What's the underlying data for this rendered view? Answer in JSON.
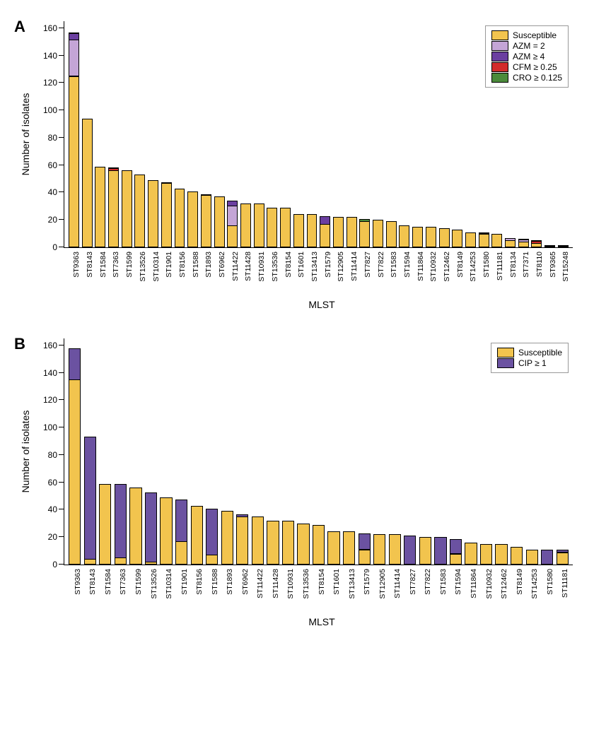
{
  "colors": {
    "Susceptible": "#f2c44e",
    "AZM_eq_2": "#c4a5d6",
    "AZM_ge_4": "#6b3fa0",
    "CFM_ge_025": "#d22b2b",
    "CRO_ge_0125": "#4b8b3b",
    "CIP_ge_1": "#6b52a1"
  },
  "panelA": {
    "panel_label": "A",
    "ylabel": "Number of isolates",
    "xlabel": "MLST",
    "ymax": 165,
    "ytick_step": 20,
    "title_fontsize": 22,
    "label_fontsize": 14,
    "tick_fontsize": 12,
    "legend": [
      {
        "key": "Susceptible",
        "label": "Susceptible"
      },
      {
        "key": "AZM_eq_2",
        "label": "AZM = 2"
      },
      {
        "key": "AZM_ge_4",
        "label": "AZM ≥ 4"
      },
      {
        "key": "CFM_ge_025",
        "label": "CFM ≥ 0.25"
      },
      {
        "key": "CRO_ge_0125",
        "label": "CRO ≥ 0.125"
      }
    ],
    "bars": [
      {
        "cat": "ST9363",
        "segs": [
          {
            "c": "Susceptible",
            "v": 125
          },
          {
            "c": "AZM_eq_2",
            "v": 27
          },
          {
            "c": "AZM_ge_4",
            "v": 5
          },
          {
            "c": "CRO_ge_0125",
            "v": 1
          }
        ]
      },
      {
        "cat": "ST8143",
        "segs": [
          {
            "c": "Susceptible",
            "v": 94
          }
        ]
      },
      {
        "cat": "ST1584",
        "segs": [
          {
            "c": "Susceptible",
            "v": 59
          }
        ]
      },
      {
        "cat": "ST7363",
        "segs": [
          {
            "c": "Susceptible",
            "v": 56
          },
          {
            "c": "CFM_ge_025",
            "v": 2
          },
          {
            "c": "AZM_ge_4",
            "v": 1
          }
        ]
      },
      {
        "cat": "ST1599",
        "segs": [
          {
            "c": "Susceptible",
            "v": 56
          }
        ]
      },
      {
        "cat": "ST13526",
        "segs": [
          {
            "c": "Susceptible",
            "v": 53
          }
        ]
      },
      {
        "cat": "ST10314",
        "segs": [
          {
            "c": "Susceptible",
            "v": 49
          }
        ]
      },
      {
        "cat": "ST1901",
        "segs": [
          {
            "c": "Susceptible",
            "v": 47
          },
          {
            "c": "AZM_ge_4",
            "v": 1
          }
        ]
      },
      {
        "cat": "ST8156",
        "segs": [
          {
            "c": "Susceptible",
            "v": 43
          }
        ]
      },
      {
        "cat": "ST1588",
        "segs": [
          {
            "c": "Susceptible",
            "v": 41
          }
        ]
      },
      {
        "cat": "ST1893",
        "segs": [
          {
            "c": "Susceptible",
            "v": 38
          },
          {
            "c": "CFM_ge_025",
            "v": 1
          }
        ]
      },
      {
        "cat": "ST6962",
        "segs": [
          {
            "c": "Susceptible",
            "v": 37
          }
        ]
      },
      {
        "cat": "ST11422",
        "segs": [
          {
            "c": "Susceptible",
            "v": 16
          },
          {
            "c": "AZM_eq_2",
            "v": 15
          },
          {
            "c": "AZM_ge_4",
            "v": 4
          }
        ]
      },
      {
        "cat": "ST11428",
        "segs": [
          {
            "c": "Susceptible",
            "v": 32
          }
        ]
      },
      {
        "cat": "ST10931",
        "segs": [
          {
            "c": "Susceptible",
            "v": 32
          }
        ]
      },
      {
        "cat": "ST13536",
        "segs": [
          {
            "c": "Susceptible",
            "v": 29
          }
        ]
      },
      {
        "cat": "ST8154",
        "segs": [
          {
            "c": "Susceptible",
            "v": 29
          }
        ]
      },
      {
        "cat": "ST1601",
        "segs": [
          {
            "c": "Susceptible",
            "v": 24
          }
        ]
      },
      {
        "cat": "ST13413",
        "segs": [
          {
            "c": "Susceptible",
            "v": 24
          }
        ]
      },
      {
        "cat": "ST1579",
        "segs": [
          {
            "c": "Susceptible",
            "v": 17
          },
          {
            "c": "AZM_ge_4",
            "v": 6
          }
        ]
      },
      {
        "cat": "ST12905",
        "segs": [
          {
            "c": "Susceptible",
            "v": 22
          }
        ]
      },
      {
        "cat": "ST11414",
        "segs": [
          {
            "c": "Susceptible",
            "v": 22
          }
        ]
      },
      {
        "cat": "ST7827",
        "segs": [
          {
            "c": "Susceptible",
            "v": 19
          },
          {
            "c": "CRO_ge_0125",
            "v": 2
          }
        ]
      },
      {
        "cat": "ST7822",
        "segs": [
          {
            "c": "Susceptible",
            "v": 20
          }
        ]
      },
      {
        "cat": "ST1583",
        "segs": [
          {
            "c": "Susceptible",
            "v": 19
          }
        ]
      },
      {
        "cat": "ST1594",
        "segs": [
          {
            "c": "Susceptible",
            "v": 16
          }
        ]
      },
      {
        "cat": "ST11864",
        "segs": [
          {
            "c": "Susceptible",
            "v": 15
          }
        ]
      },
      {
        "cat": "ST10932",
        "segs": [
          {
            "c": "Susceptible",
            "v": 15
          }
        ]
      },
      {
        "cat": "ST12462",
        "segs": [
          {
            "c": "Susceptible",
            "v": 14
          }
        ]
      },
      {
        "cat": "ST8149",
        "segs": [
          {
            "c": "Susceptible",
            "v": 13
          }
        ]
      },
      {
        "cat": "ST14253",
        "segs": [
          {
            "c": "Susceptible",
            "v": 11
          }
        ]
      },
      {
        "cat": "ST1580",
        "segs": [
          {
            "c": "Susceptible",
            "v": 10
          },
          {
            "c": "CFM_ge_025",
            "v": 1
          }
        ]
      },
      {
        "cat": "ST11181",
        "segs": [
          {
            "c": "Susceptible",
            "v": 10
          }
        ]
      },
      {
        "cat": "ST8134",
        "segs": [
          {
            "c": "Susceptible",
            "v": 5
          },
          {
            "c": "AZM_eq_2",
            "v": 2
          }
        ]
      },
      {
        "cat": "ST7371",
        "segs": [
          {
            "c": "Susceptible",
            "v": 4
          },
          {
            "c": "AZM_eq_2",
            "v": 2
          },
          {
            "c": "AZM_ge_4",
            "v": 1
          }
        ]
      },
      {
        "cat": "ST8110",
        "segs": [
          {
            "c": "Susceptible",
            "v": 3
          },
          {
            "c": "CFM_ge_025",
            "v": 2
          },
          {
            "c": "AZM_ge_4",
            "v": 1
          }
        ]
      },
      {
        "cat": "ST9365",
        "segs": [
          {
            "c": "CFM_ge_025",
            "v": 1
          },
          {
            "c": "AZM_ge_4",
            "v": 1
          }
        ]
      },
      {
        "cat": "ST15248",
        "segs": [
          {
            "c": "AZM_ge_4",
            "v": 1
          },
          {
            "c": "AZM_eq_2",
            "v": 1
          }
        ]
      }
    ]
  },
  "panelB": {
    "panel_label": "B",
    "ylabel": "Number of isolates",
    "xlabel": "MLST",
    "ymax": 165,
    "ytick_step": 20,
    "title_fontsize": 22,
    "label_fontsize": 14,
    "tick_fontsize": 12,
    "legend": [
      {
        "key": "Susceptible",
        "label": "Susceptible"
      },
      {
        "key": "CIP_ge_1",
        "label": "CIP ≥ 1"
      }
    ],
    "bars": [
      {
        "cat": "ST9363",
        "segs": [
          {
            "c": "Susceptible",
            "v": 135
          },
          {
            "c": "CIP_ge_1",
            "v": 23
          }
        ]
      },
      {
        "cat": "ST8143",
        "segs": [
          {
            "c": "Susceptible",
            "v": 4
          },
          {
            "c": "CIP_ge_1",
            "v": 90
          }
        ]
      },
      {
        "cat": "ST1584",
        "segs": [
          {
            "c": "Susceptible",
            "v": 59
          }
        ]
      },
      {
        "cat": "ST7363",
        "segs": [
          {
            "c": "Susceptible",
            "v": 5
          },
          {
            "c": "CIP_ge_1",
            "v": 54
          }
        ]
      },
      {
        "cat": "ST1599",
        "segs": [
          {
            "c": "Susceptible",
            "v": 56
          }
        ]
      },
      {
        "cat": "ST13526",
        "segs": [
          {
            "c": "Susceptible",
            "v": 2
          },
          {
            "c": "CIP_ge_1",
            "v": 51
          }
        ]
      },
      {
        "cat": "ST10314",
        "segs": [
          {
            "c": "Susceptible",
            "v": 49
          }
        ]
      },
      {
        "cat": "ST1901",
        "segs": [
          {
            "c": "Susceptible",
            "v": 17
          },
          {
            "c": "CIP_ge_1",
            "v": 31
          }
        ]
      },
      {
        "cat": "ST8156",
        "segs": [
          {
            "c": "Susceptible",
            "v": 43
          }
        ]
      },
      {
        "cat": "ST1588",
        "segs": [
          {
            "c": "Susceptible",
            "v": 7
          },
          {
            "c": "CIP_ge_1",
            "v": 34
          }
        ]
      },
      {
        "cat": "ST1893",
        "segs": [
          {
            "c": "Susceptible",
            "v": 39
          }
        ]
      },
      {
        "cat": "ST6962",
        "segs": [
          {
            "c": "Susceptible",
            "v": 35
          },
          {
            "c": "CIP_ge_1",
            "v": 2
          }
        ]
      },
      {
        "cat": "ST11422",
        "segs": [
          {
            "c": "Susceptible",
            "v": 35
          }
        ]
      },
      {
        "cat": "ST11428",
        "segs": [
          {
            "c": "Susceptible",
            "v": 32
          }
        ]
      },
      {
        "cat": "ST10931",
        "segs": [
          {
            "c": "Susceptible",
            "v": 32
          }
        ]
      },
      {
        "cat": "ST13536",
        "segs": [
          {
            "c": "Susceptible",
            "v": 30
          }
        ]
      },
      {
        "cat": "ST8154",
        "segs": [
          {
            "c": "Susceptible",
            "v": 29
          }
        ]
      },
      {
        "cat": "ST1601",
        "segs": [
          {
            "c": "Susceptible",
            "v": 24
          }
        ]
      },
      {
        "cat": "ST13413",
        "segs": [
          {
            "c": "Susceptible",
            "v": 24
          }
        ]
      },
      {
        "cat": "ST1579",
        "segs": [
          {
            "c": "Susceptible",
            "v": 11
          },
          {
            "c": "CIP_ge_1",
            "v": 12
          }
        ]
      },
      {
        "cat": "ST12905",
        "segs": [
          {
            "c": "Susceptible",
            "v": 22
          }
        ]
      },
      {
        "cat": "ST11414",
        "segs": [
          {
            "c": "Susceptible",
            "v": 22
          }
        ]
      },
      {
        "cat": "ST7827",
        "segs": [
          {
            "c": "CIP_ge_1",
            "v": 21
          }
        ]
      },
      {
        "cat": "ST7822",
        "segs": [
          {
            "c": "Susceptible",
            "v": 20
          }
        ]
      },
      {
        "cat": "ST1583",
        "segs": [
          {
            "c": "CIP_ge_1",
            "v": 20
          }
        ]
      },
      {
        "cat": "ST1594",
        "segs": [
          {
            "c": "Susceptible",
            "v": 8
          },
          {
            "c": "CIP_ge_1",
            "v": 11
          }
        ]
      },
      {
        "cat": "ST11864",
        "segs": [
          {
            "c": "Susceptible",
            "v": 16
          }
        ]
      },
      {
        "cat": "ST10932",
        "segs": [
          {
            "c": "Susceptible",
            "v": 15
          }
        ]
      },
      {
        "cat": "ST12462",
        "segs": [
          {
            "c": "Susceptible",
            "v": 15
          }
        ]
      },
      {
        "cat": "ST8149",
        "segs": [
          {
            "c": "Susceptible",
            "v": 13
          }
        ]
      },
      {
        "cat": "ST14253",
        "segs": [
          {
            "c": "Susceptible",
            "v": 11
          }
        ]
      },
      {
        "cat": "ST1580",
        "segs": [
          {
            "c": "CIP_ge_1",
            "v": 11
          }
        ]
      },
      {
        "cat": "ST11181",
        "segs": [
          {
            "c": "Susceptible",
            "v": 9
          },
          {
            "c": "CIP_ge_1",
            "v": 2
          }
        ]
      }
    ]
  }
}
